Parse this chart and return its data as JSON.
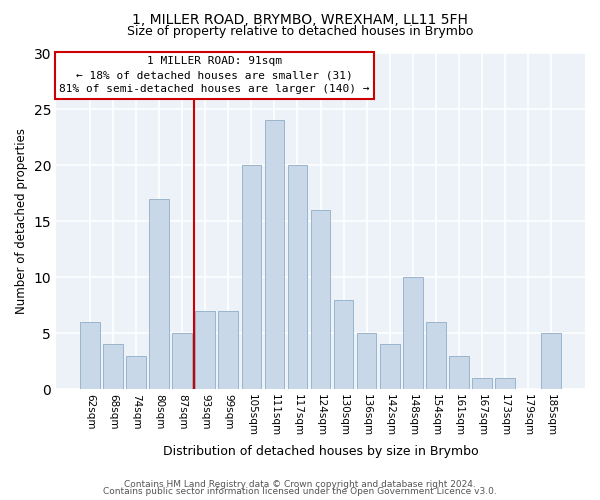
{
  "title1": "1, MILLER ROAD, BRYMBO, WREXHAM, LL11 5FH",
  "title2": "Size of property relative to detached houses in Brymbo",
  "xlabel": "Distribution of detached houses by size in Brymbo",
  "ylabel": "Number of detached properties",
  "footer1": "Contains HM Land Registry data © Crown copyright and database right 2024.",
  "footer2": "Contains public sector information licensed under the Open Government Licence v3.0.",
  "bar_labels": [
    "62sqm",
    "68sqm",
    "74sqm",
    "80sqm",
    "87sqm",
    "93sqm",
    "99sqm",
    "105sqm",
    "111sqm",
    "117sqm",
    "124sqm",
    "130sqm",
    "136sqm",
    "142sqm",
    "148sqm",
    "154sqm",
    "161sqm",
    "167sqm",
    "173sqm",
    "179sqm",
    "185sqm"
  ],
  "bar_values": [
    6,
    4,
    3,
    17,
    5,
    7,
    7,
    20,
    24,
    20,
    16,
    8,
    5,
    4,
    10,
    6,
    3,
    1,
    1,
    0,
    5
  ],
  "bar_color": "#c8d8e8",
  "bar_edge_color": "#9ab4cc",
  "vline_x": 4.5,
  "vline_color": "#cc0000",
  "vline_label": "1 MILLER ROAD: 91sqm",
  "annotation_line1": "← 18% of detached houses are smaller (31)",
  "annotation_line2": "81% of semi-detached houses are larger (140) →",
  "box_facecolor": "#ffffff",
  "box_edgecolor": "#cc0000",
  "ylim": [
    0,
    30
  ],
  "yticks": [
    0,
    5,
    10,
    15,
    20,
    25,
    30
  ],
  "bg_color": "#edf2f8",
  "grid_color": "#ffffff",
  "title_fontsize": 10,
  "subtitle_fontsize": 9,
  "ylabel_fontsize": 8.5,
  "xlabel_fontsize": 9,
  "tick_fontsize": 7.5,
  "annot_fontsize": 8,
  "footer_fontsize": 6.5
}
